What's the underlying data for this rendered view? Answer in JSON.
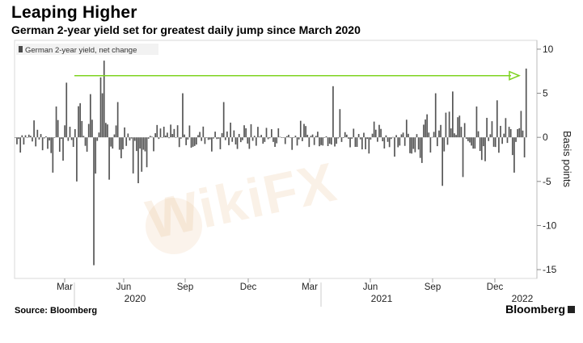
{
  "header": {
    "title": "Leaping Higher",
    "subtitle": "German 2-year yield set for greatest daily jump since March 2020"
  },
  "footer": {
    "source": "Source: Bloomberg",
    "brand": "Bloomberg"
  },
  "watermark": {
    "text": "WikiFX"
  },
  "colors": {
    "bars": "#555555",
    "arrow": "#7ed321",
    "legend_swatch": "#4a4a4a"
  },
  "chart_data": {
    "type": "bar",
    "title": "Leaping Higher",
    "subtitle": "German 2-year yield set for greatest daily jump since March 2020",
    "legend": "German 2-year yield, net change",
    "ylabel": "Basis points",
    "ylim": [
      -16,
      11
    ],
    "yticks": [
      10,
      5,
      0,
      -5,
      -10,
      -15
    ],
    "y_axis_side": "right",
    "x_tick_labels": [
      "Mar",
      "Jun",
      "Sep",
      "Dec",
      "Mar",
      "Jun",
      "Sep",
      "Dec"
    ],
    "year_labels": [
      "2020",
      "2021",
      "2022"
    ],
    "arrow_level": 7,
    "highlighted_values": {
      "min": -14.5,
      "max_2020": 8.7,
      "latest": 7.8
    }
  }
}
